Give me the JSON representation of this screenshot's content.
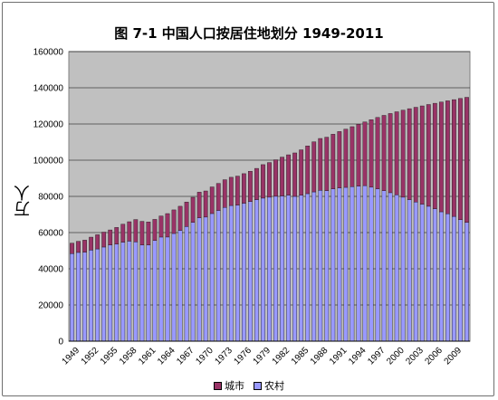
{
  "chart_data": {
    "type": "bar",
    "stacked": true,
    "title": "图 7-1 中国人口按居住地划分 1949-2011",
    "ylabel": "万人",
    "xlabel": "",
    "ylim": [
      0,
      160000
    ],
    "yticks": [
      0,
      20000,
      40000,
      60000,
      80000,
      100000,
      120000,
      140000,
      160000
    ],
    "grid": true,
    "legend_position": "bottom",
    "categories": [
      1949,
      1950,
      1951,
      1952,
      1953,
      1954,
      1955,
      1956,
      1957,
      1958,
      1959,
      1960,
      1961,
      1962,
      1963,
      1964,
      1965,
      1966,
      1967,
      1968,
      1969,
      1970,
      1971,
      1972,
      1973,
      1974,
      1975,
      1976,
      1977,
      1978,
      1979,
      1980,
      1981,
      1982,
      1983,
      1984,
      1985,
      1986,
      1987,
      1988,
      1989,
      1990,
      1991,
      1992,
      1993,
      1994,
      1995,
      1996,
      1997,
      1998,
      1999,
      2000,
      2001,
      2002,
      2003,
      2004,
      2005,
      2006,
      2007,
      2008,
      2009,
      2010,
      2011
    ],
    "xtick_labels": [
      "1949",
      "1952",
      "1955",
      "1958",
      "1961",
      "1964",
      "1967",
      "1970",
      "1973",
      "1976",
      "1979",
      "1982",
      "1985",
      "1988",
      "1991",
      "1994",
      "1997",
      "2000",
      "2003",
      "2006",
      "2009"
    ],
    "series": [
      {
        "name": "城市",
        "color": "#993366",
        "values": [
          5765,
          6169,
          6632,
          7163,
          7826,
          8249,
          8285,
          9185,
          9949,
          10721,
          12371,
          13073,
          12707,
          11659,
          11646,
          12950,
          13045,
          13313,
          13548,
          13838,
          14117,
          14424,
          14711,
          14935,
          15345,
          15595,
          16030,
          16341,
          16669,
          17245,
          18495,
          19140,
          20171,
          21480,
          22274,
          24017,
          25094,
          26366,
          27674,
          28661,
          29540,
          30195,
          31203,
          32175,
          33173,
          34169,
          35174,
          37304,
          39449,
          41608,
          43748,
          45906,
          48064,
          50212,
          52376,
          54283,
          56212,
          58288,
          60633,
          62403,
          64512,
          66978,
          69079
        ]
      },
      {
        "name": "农村",
        "color": "#9999FF",
        "values": [
          48402,
          49027,
          49191,
          50319,
          50970,
          52016,
          53180,
          53643,
          54704,
          55273,
          54836,
          53134,
          53152,
          55636,
          57526,
          57549,
          59493,
          61229,
          63321,
          65656,
          68210,
          68568,
          70518,
          72242,
          73866,
          74962,
          75172,
          76210,
          77188,
          78221,
          79047,
          79565,
          80061,
          80228,
          80705,
          79994,
          80630,
          81510,
          82483,
          83336,
          83164,
          84138,
          84620,
          84996,
          85344,
          85681,
          85947,
          85085,
          84177,
          83153,
          82038,
          80837,
          79563,
          78241,
          76851,
          75705,
          74544,
          73160,
          71496,
          70399,
          68938,
          67113,
          65656
        ]
      }
    ]
  }
}
